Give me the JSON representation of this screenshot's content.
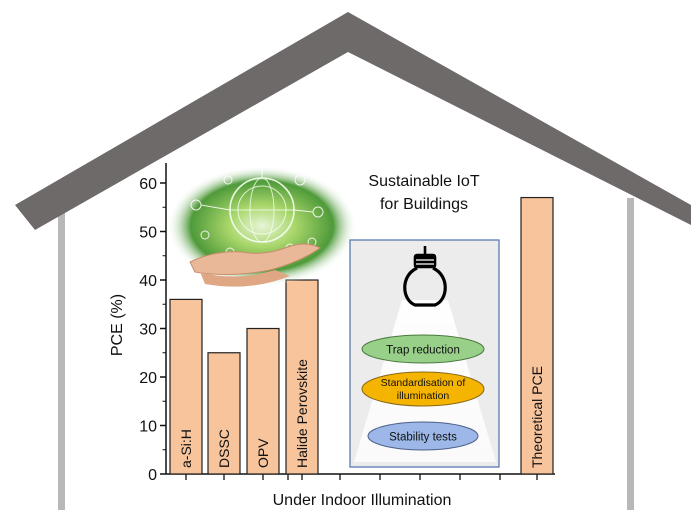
{
  "chart_data": {
    "type": "bar",
    "ylabel": "PCE (%)",
    "xlabel": "Under Indoor Illumination",
    "ylim": [
      0,
      60
    ],
    "yticks": [
      0,
      10,
      20,
      30,
      40,
      50,
      60
    ],
    "grid": false,
    "categories": [
      "a-Si:H",
      "DSSC",
      "OPV",
      "Halide Perovskite",
      "Theoretical PCE"
    ],
    "values": [
      36,
      25,
      30,
      40,
      57
    ],
    "bar_color": "#f8c49c",
    "bar_edge_color": "#222222"
  },
  "inset": {
    "title_line1": "Sustainable IoT",
    "title_line2": "for Buildings",
    "icon": "light-bulb-icon",
    "items": [
      {
        "label": "Trap reduction",
        "color": "#98d08a"
      },
      {
        "label_line1": "Standardisation of",
        "label_line2": "illumination",
        "color": "#f4b400"
      },
      {
        "label": "Stability tests",
        "color": "#9db8e8"
      }
    ]
  },
  "colors": {
    "roof": "#6e6a6a",
    "walls": "#b8b8b8",
    "inset_border": "#5b7bb5",
    "inset_bg": "#ececec"
  }
}
